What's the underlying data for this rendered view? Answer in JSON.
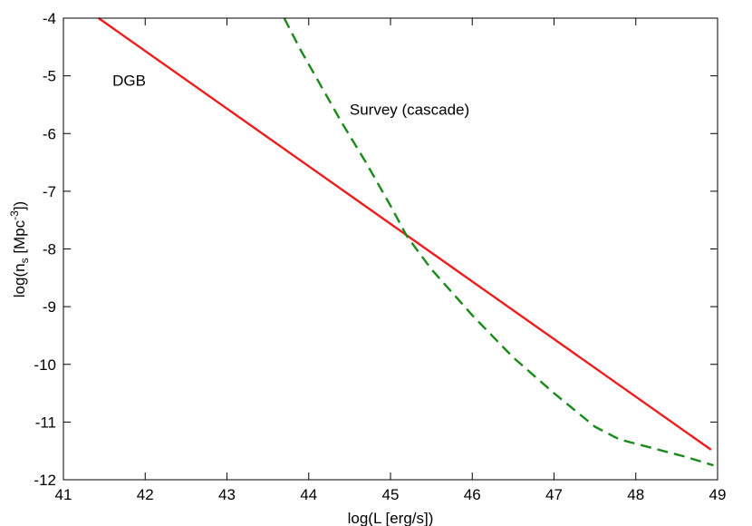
{
  "chart_data": {
    "type": "line",
    "xlabel": "log(L [erg/s])",
    "ylabel": {
      "prefix": "log(n",
      "sub": "s",
      "middle": " [Mpc",
      "sup": "-3",
      "suffix": "])"
    },
    "xlim": [
      41,
      49
    ],
    "ylim": [
      -12,
      -4
    ],
    "xticks": [
      "41",
      "42",
      "43",
      "44",
      "45",
      "46",
      "47",
      "48",
      "49"
    ],
    "yticks": [
      "-4",
      "-5",
      "-6",
      "-7",
      "-8",
      "-9",
      "-10",
      "-11",
      "-12"
    ],
    "grid": false,
    "legend": "none",
    "series": [
      {
        "color": "#ee1c1c",
        "style": "solid",
        "x": [
          41.43,
          48.92
        ],
        "y": [
          -4.0,
          -11.48
        ]
      },
      {
        "color": "#1a8a1a",
        "style": "dashed",
        "x": [
          43.7,
          43.9,
          44.1,
          44.4,
          44.7,
          45.0,
          45.2,
          45.5,
          46.0,
          46.5,
          47.0,
          47.5,
          47.8,
          48.2,
          48.6,
          48.95
        ],
        "y": [
          -4.0,
          -4.55,
          -5.05,
          -5.8,
          -6.5,
          -7.25,
          -7.78,
          -8.35,
          -9.15,
          -9.88,
          -10.5,
          -11.08,
          -11.3,
          -11.45,
          -11.6,
          -11.75
        ]
      }
    ],
    "annotations": [
      {
        "text": "DGB",
        "x": 41.6,
        "y": -5.08
      },
      {
        "text": "Survey (cascade)",
        "x": 44.5,
        "y": -5.58
      }
    ]
  }
}
